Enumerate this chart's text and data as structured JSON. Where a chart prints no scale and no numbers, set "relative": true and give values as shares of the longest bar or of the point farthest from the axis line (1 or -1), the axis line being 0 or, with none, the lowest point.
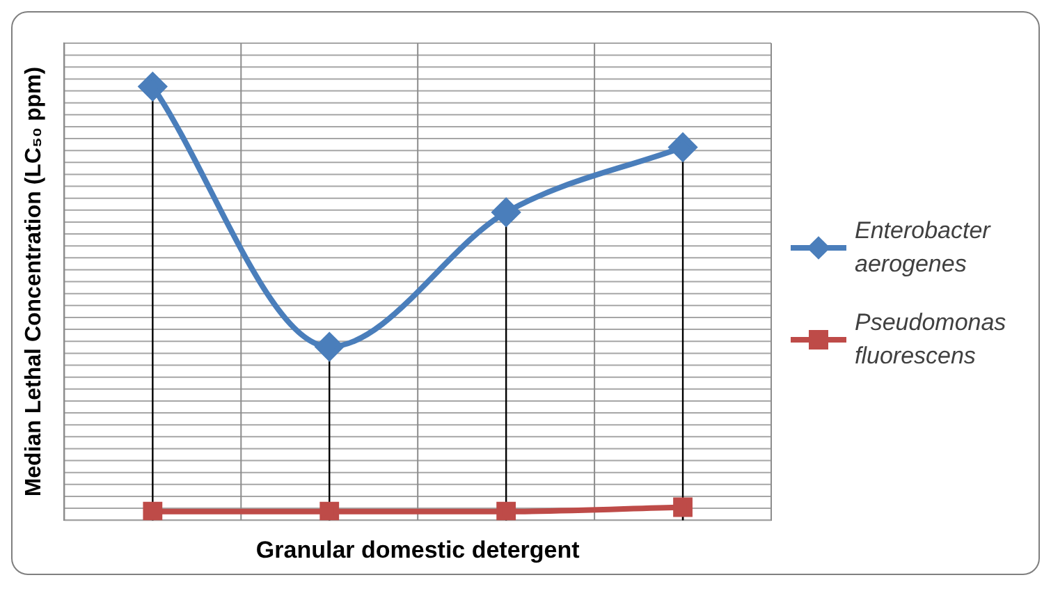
{
  "chart_data": {
    "type": "line",
    "xlabel": "Granular domestic detergent",
    "ylabel": "Median Lethal Concentration (LC₅₀ ppm)",
    "categories": [
      null,
      null,
      null,
      null
    ],
    "relative": true,
    "grid": true,
    "legend": "right",
    "series": [
      {
        "name": "Enterobacter aerogenes",
        "color": "#4a7ebb",
        "values": [
          1,
          0.4,
          0.71,
          0.86
        ],
        "marker": "diamond"
      },
      {
        "name": "Pseudomonas fluorescens",
        "color": "#be4b48",
        "values": [
          0.02,
          0.02,
          0.02,
          0.03
        ],
        "marker": "square"
      }
    ]
  }
}
